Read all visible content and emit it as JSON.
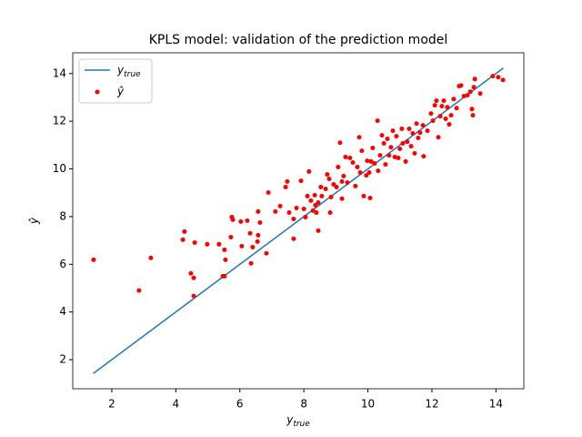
{
  "chart_data": {
    "type": "scatter",
    "title": "KPLS model: validation of the prediction model",
    "xlabel": {
      "base": "y",
      "sub": "true"
    },
    "ylabel": "ŷ",
    "xlim": [
      0.78,
      14.87
    ],
    "ylim": [
      0.78,
      14.87
    ],
    "xticks": [
      2,
      4,
      6,
      8,
      10,
      12,
      14
    ],
    "yticks": [
      2,
      4,
      6,
      8,
      10,
      12,
      14
    ],
    "grid": false,
    "legend": "upper left",
    "series": [
      {
        "name": {
          "base": "y",
          "sub": "true"
        },
        "color": "#1f77b4",
        "style": "line",
        "x": [
          1.42,
          14.23
        ],
        "values": [
          1.42,
          14.23
        ]
      },
      {
        "name": "ŷ",
        "color": "#ff0000",
        "style": "points",
        "x": [
          1.43,
          2.85,
          3.22,
          4.22,
          4.27,
          4.47,
          4.56,
          4.56,
          4.59,
          4.98,
          5.35,
          5.47,
          5.52,
          5.52,
          5.55,
          5.72,
          5.75,
          5.78,
          6.03,
          6.06,
          6.23,
          6.32,
          6.35,
          6.4,
          6.55,
          6.57,
          6.57,
          6.63,
          6.83,
          6.89,
          7.11,
          7.26,
          7.43,
          7.48,
          7.54,
          7.68,
          7.68,
          7.77,
          7.91,
          8.0,
          8.05,
          8.11,
          8.16,
          8.22,
          8.28,
          8.34,
          8.36,
          8.39,
          8.45,
          8.45,
          8.53,
          8.56,
          8.68,
          8.73,
          8.79,
          8.82,
          8.85,
          8.93,
          9.02,
          9.07,
          9.13,
          9.19,
          9.19,
          9.24,
          9.3,
          9.36,
          9.44,
          9.53,
          9.61,
          9.67,
          9.73,
          9.76,
          9.81,
          9.87,
          9.95,
          9.98,
          10.04,
          10.07,
          10.1,
          10.15,
          10.21,
          10.3,
          10.32,
          10.38,
          10.44,
          10.5,
          10.55,
          10.61,
          10.66,
          10.72,
          10.78,
          10.84,
          10.89,
          10.95,
          11.0,
          11.06,
          11.09,
          11.18,
          11.23,
          11.29,
          11.35,
          11.4,
          11.46,
          11.52,
          11.57,
          11.63,
          11.72,
          11.74,
          11.86,
          11.97,
          12.03,
          12.09,
          12.14,
          12.2,
          12.26,
          12.31,
          12.37,
          12.43,
          12.48,
          12.54,
          12.6,
          12.68,
          12.77,
          12.85,
          12.91,
          13.0,
          13.11,
          13.2,
          13.25,
          13.28,
          13.31,
          13.34,
          13.51,
          13.9,
          14.07,
          14.22
        ],
        "values": [
          6.19,
          4.9,
          6.27,
          7.03,
          7.37,
          5.62,
          5.43,
          4.67,
          6.91,
          6.84,
          6.84,
          5.5,
          5.5,
          6.61,
          6.19,
          7.14,
          7.98,
          7.87,
          7.79,
          6.76,
          7.83,
          7.3,
          6.04,
          6.72,
          6.95,
          7.22,
          8.21,
          7.75,
          6.46,
          9.01,
          8.21,
          8.44,
          9.24,
          9.47,
          8.17,
          7.07,
          7.9,
          8.36,
          9.5,
          8.32,
          7.98,
          8.86,
          9.89,
          8.67,
          8.25,
          8.9,
          8.48,
          8.17,
          7.41,
          8.59,
          9.24,
          8.86,
          9.16,
          9.77,
          9.58,
          8.17,
          8.82,
          9.35,
          9.24,
          10.08,
          11.1,
          8.75,
          9.47,
          9.7,
          10.5,
          9.43,
          10.46,
          10.27,
          9.28,
          10.08,
          11.33,
          9.85,
          10.76,
          8.86,
          9.73,
          10.34,
          9.85,
          8.78,
          10.31,
          10.88,
          10.23,
          12.02,
          9.92,
          10.57,
          11.41,
          11.07,
          10.19,
          11.26,
          10.57,
          10.91,
          11.6,
          10.5,
          11.37,
          10.46,
          10.84,
          11.68,
          11.07,
          10.31,
          11.14,
          11.68,
          10.95,
          11.49,
          10.65,
          11.9,
          11.3,
          11.52,
          11.83,
          10.53,
          11.6,
          12.32,
          12.02,
          12.67,
          12.86,
          11.33,
          12.21,
          12.63,
          12.86,
          12.1,
          12.59,
          11.87,
          12.25,
          12.93,
          12.55,
          13.47,
          13.5,
          13.05,
          13.09,
          13.24,
          12.51,
          12.25,
          13.43,
          13.77,
          13.16,
          13.89,
          13.85,
          13.73
        ]
      }
    ]
  }
}
